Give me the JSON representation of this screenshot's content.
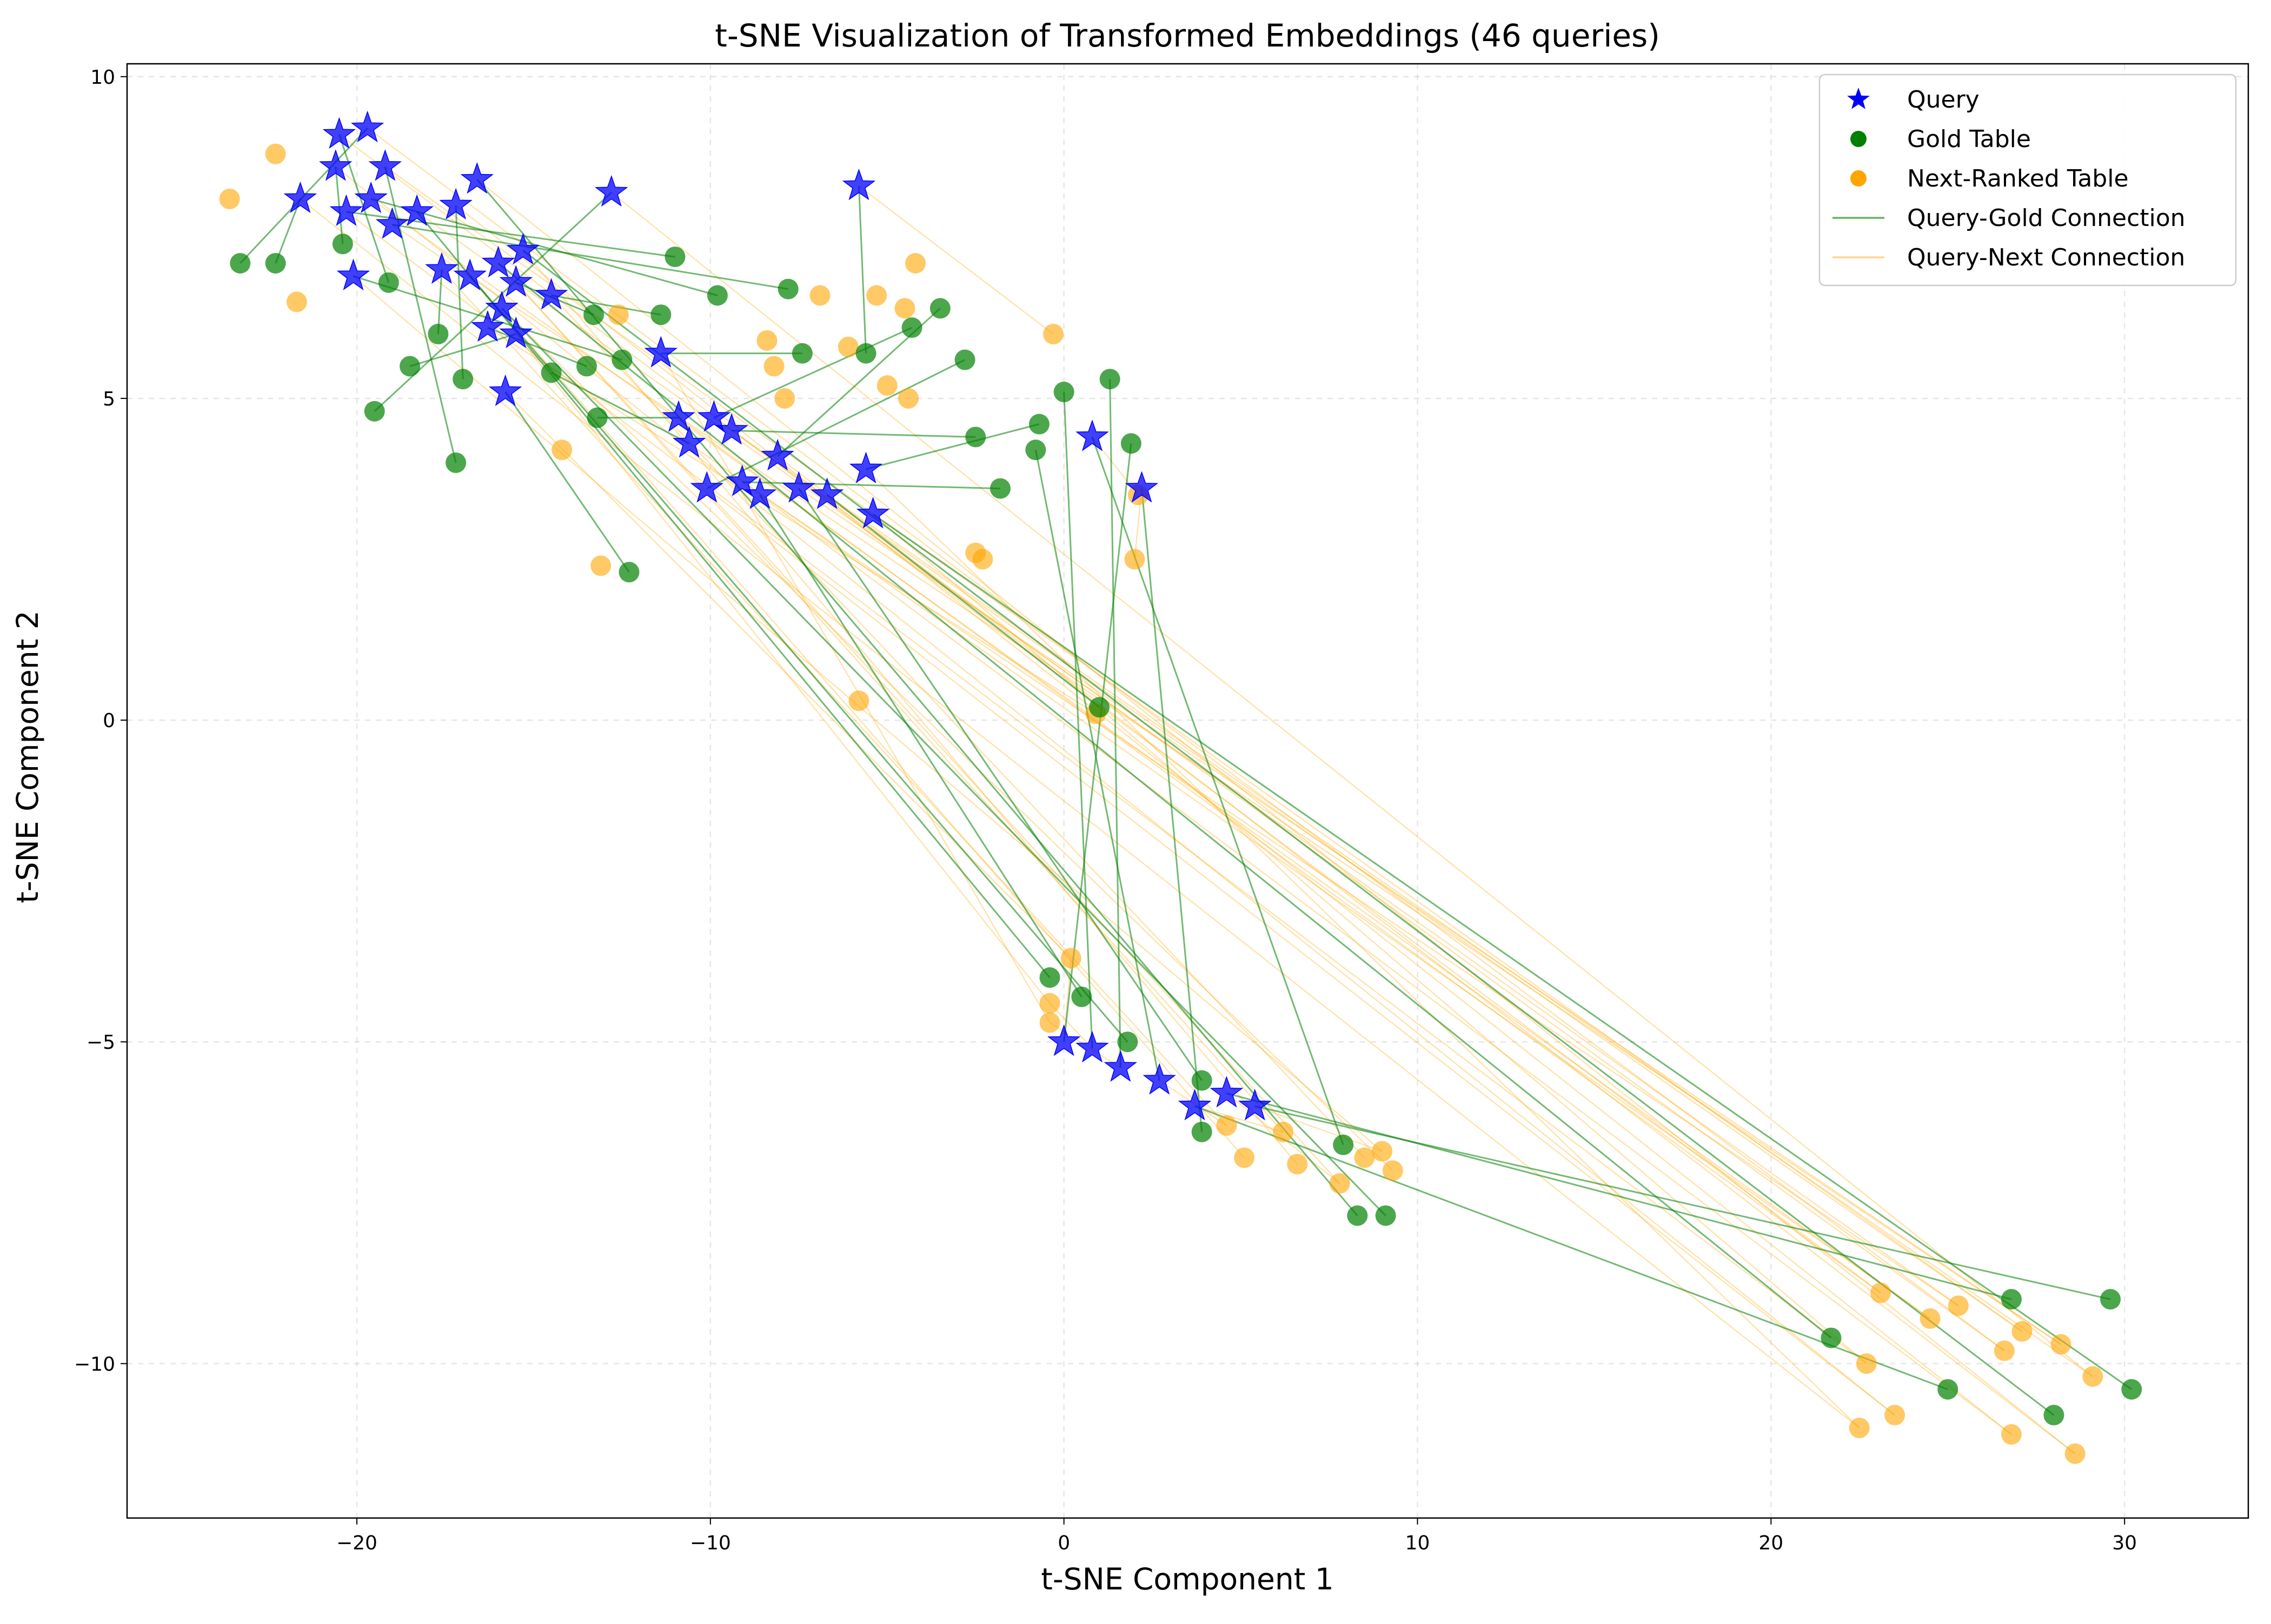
{
  "chart_data": {
    "type": "scatter",
    "title": "t-SNE Visualization of Transformed Embeddings (46 queries)",
    "xlabel": "t-SNE Component 1",
    "ylabel": "t-SNE Component 2",
    "xlim": [
      -26.5,
      33.5
    ],
    "ylim": [
      -12.4,
      10.2
    ],
    "x_ticks": [
      -20,
      -10,
      0,
      10,
      20,
      30
    ],
    "y_ticks": [
      -10,
      -5,
      0,
      5,
      10
    ],
    "x_tick_labels": [
      "−20",
      "−10",
      "0",
      "10",
      "20",
      "30"
    ],
    "y_tick_labels": [
      "−10",
      "−5",
      "0",
      "5",
      "10"
    ],
    "grid": true,
    "legend_position": "top-right",
    "legend": [
      {
        "label": "Query",
        "kind": "star",
        "color": "#0000ff"
      },
      {
        "label": "Gold Table",
        "kind": "circle",
        "color": "#008000"
      },
      {
        "label": "Next-Ranked Table",
        "kind": "circle",
        "color": "#ffa500"
      },
      {
        "label": "Query-Gold Connection",
        "kind": "line",
        "color": "#008000"
      },
      {
        "label": "Query-Next Connection",
        "kind": "line",
        "color": "#ffa500"
      }
    ],
    "colors": {
      "query": "#0000ff",
      "gold": "#008000",
      "next": "#ffa500"
    },
    "series": [
      {
        "name": "Query",
        "points": [
          [
            -20.5,
            9.1
          ],
          [
            -19.7,
            9.2
          ],
          [
            -20.6,
            8.6
          ],
          [
            -19.2,
            8.6
          ],
          [
            -21.6,
            8.1
          ],
          [
            -20.3,
            7.9
          ],
          [
            -19.6,
            8.1
          ],
          [
            -19.0,
            7.7
          ],
          [
            -18.3,
            7.9
          ],
          [
            -17.2,
            8.0
          ],
          [
            -16.6,
            8.4
          ],
          [
            -12.8,
            8.2
          ],
          [
            -5.8,
            8.3
          ],
          [
            -17.6,
            7.0
          ],
          [
            -16.8,
            6.9
          ],
          [
            -16.0,
            7.1
          ],
          [
            -15.3,
            7.3
          ],
          [
            -15.5,
            6.8
          ],
          [
            -14.5,
            6.6
          ],
          [
            -20.1,
            6.9
          ],
          [
            -15.9,
            6.4
          ],
          [
            -16.3,
            6.1
          ],
          [
            -15.5,
            6.0
          ],
          [
            -11.4,
            5.7
          ],
          [
            -15.8,
            5.1
          ],
          [
            -10.9,
            4.7
          ],
          [
            -10.6,
            4.3
          ],
          [
            -9.9,
            4.7
          ],
          [
            -9.4,
            4.5
          ],
          [
            -8.1,
            4.1
          ],
          [
            -10.1,
            3.6
          ],
          [
            -9.1,
            3.7
          ],
          [
            -8.6,
            3.5
          ],
          [
            -7.5,
            3.6
          ],
          [
            -6.7,
            3.5
          ],
          [
            -5.6,
            3.9
          ],
          [
            -5.4,
            3.2
          ],
          [
            0.8,
            4.4
          ],
          [
            2.2,
            3.6
          ],
          [
            0.0,
            -5.0
          ],
          [
            0.8,
            -5.1
          ],
          [
            1.6,
            -5.4
          ],
          [
            2.7,
            -5.6
          ],
          [
            3.7,
            -6.0
          ],
          [
            4.6,
            -5.8
          ],
          [
            5.4,
            -6.0
          ]
        ]
      },
      {
        "name": "Gold Table",
        "points": [
          [
            -23.3,
            7.1
          ],
          [
            -22.3,
            7.1
          ],
          [
            -20.4,
            7.4
          ],
          [
            -19.1,
            6.8
          ],
          [
            -11.0,
            7.2
          ],
          [
            -9.8,
            6.6
          ],
          [
            -7.8,
            6.7
          ],
          [
            -13.3,
            6.3
          ],
          [
            -11.4,
            6.3
          ],
          [
            -17.7,
            6.0
          ],
          [
            -3.5,
            6.4
          ],
          [
            -4.3,
            6.1
          ],
          [
            -7.4,
            5.7
          ],
          [
            -5.6,
            5.7
          ],
          [
            -12.5,
            5.6
          ],
          [
            -13.5,
            5.5
          ],
          [
            -18.5,
            5.5
          ],
          [
            -17.0,
            5.3
          ],
          [
            -14.5,
            5.4
          ],
          [
            -2.8,
            5.6
          ],
          [
            -19.5,
            4.8
          ],
          [
            -17.2,
            4.0
          ],
          [
            -13.2,
            4.7
          ],
          [
            -2.5,
            4.4
          ],
          [
            -0.7,
            4.6
          ],
          [
            1.9,
            4.3
          ],
          [
            -12.3,
            2.3
          ],
          [
            -1.8,
            3.6
          ],
          [
            1.0,
            0.2
          ],
          [
            -0.4,
            -4.0
          ],
          [
            0.5,
            -4.3
          ],
          [
            1.8,
            -5.0
          ],
          [
            3.9,
            -5.6
          ],
          [
            3.9,
            -6.4
          ],
          [
            7.9,
            -6.6
          ],
          [
            8.3,
            -7.7
          ],
          [
            9.1,
            -7.7
          ],
          [
            21.7,
            -9.6
          ],
          [
            28.0,
            -10.8
          ],
          [
            30.2,
            -10.4
          ],
          [
            0.0,
            5.1
          ],
          [
            1.3,
            5.3
          ],
          [
            -0.8,
            4.2
          ],
          [
            25.0,
            -10.4
          ],
          [
            26.8,
            -9.0
          ],
          [
            29.6,
            -9.0
          ]
        ]
      },
      {
        "name": "Next-Ranked Table",
        "points": [
          [
            -23.6,
            8.1
          ],
          [
            -22.3,
            8.8
          ],
          [
            -21.7,
            6.5
          ],
          [
            -12.6,
            6.3
          ],
          [
            -8.4,
            5.9
          ],
          [
            -8.2,
            5.5
          ],
          [
            -7.9,
            5.0
          ],
          [
            -6.9,
            6.6
          ],
          [
            -5.3,
            6.6
          ],
          [
            -4.5,
            6.4
          ],
          [
            -4.2,
            7.1
          ],
          [
            -6.1,
            5.8
          ],
          [
            -5.0,
            5.2
          ],
          [
            -4.4,
            5.0
          ],
          [
            -0.3,
            6.0
          ],
          [
            -14.2,
            4.2
          ],
          [
            -13.1,
            2.4
          ],
          [
            -2.5,
            2.6
          ],
          [
            -2.3,
            2.5
          ],
          [
            2.0,
            2.5
          ],
          [
            2.1,
            3.5
          ],
          [
            -5.8,
            0.3
          ],
          [
            0.9,
            0.1
          ],
          [
            0.2,
            -3.7
          ],
          [
            -0.4,
            -4.4
          ],
          [
            -0.4,
            -4.7
          ],
          [
            4.6,
            -6.3
          ],
          [
            5.1,
            -6.8
          ],
          [
            6.2,
            -6.4
          ],
          [
            6.6,
            -6.9
          ],
          [
            7.8,
            -7.2
          ],
          [
            8.5,
            -6.8
          ],
          [
            9.0,
            -6.7
          ],
          [
            9.3,
            -7.0
          ],
          [
            22.5,
            -11.0
          ],
          [
            22.7,
            -10.0
          ],
          [
            23.1,
            -8.9
          ],
          [
            23.5,
            -10.8
          ],
          [
            24.5,
            -9.3
          ],
          [
            25.3,
            -9.1
          ],
          [
            26.6,
            -9.8
          ],
          [
            26.8,
            -11.1
          ],
          [
            27.1,
            -9.5
          ],
          [
            28.2,
            -9.7
          ],
          [
            28.6,
            -11.4
          ],
          [
            29.1,
            -10.2
          ]
        ]
      }
    ],
    "query_gold_pairs": [
      [
        0,
        3
      ],
      [
        1,
        0
      ],
      [
        2,
        2
      ],
      [
        3,
        21
      ],
      [
        4,
        1
      ],
      [
        5,
        4
      ],
      [
        6,
        5
      ],
      [
        7,
        6
      ],
      [
        8,
        29
      ],
      [
        9,
        17
      ],
      [
        10,
        35
      ],
      [
        11,
        20
      ],
      [
        12,
        13
      ],
      [
        13,
        9
      ],
      [
        14,
        31
      ],
      [
        15,
        37
      ],
      [
        16,
        38
      ],
      [
        17,
        7
      ],
      [
        18,
        8
      ],
      [
        19,
        14
      ],
      [
        20,
        36
      ],
      [
        21,
        15
      ],
      [
        22,
        16
      ],
      [
        23,
        12
      ],
      [
        24,
        26
      ],
      [
        25,
        22
      ],
      [
        26,
        18
      ],
      [
        27,
        11
      ],
      [
        28,
        23
      ],
      [
        29,
        10
      ],
      [
        30,
        19
      ],
      [
        31,
        27
      ],
      [
        32,
        30
      ],
      [
        33,
        32
      ],
      [
        34,
        28
      ],
      [
        35,
        24
      ],
      [
        36,
        39
      ],
      [
        37,
        34
      ],
      [
        38,
        33
      ],
      [
        39,
        25
      ],
      [
        40,
        40
      ],
      [
        41,
        41
      ],
      [
        42,
        42
      ],
      [
        43,
        43
      ],
      [
        44,
        44
      ],
      [
        45,
        45
      ]
    ],
    "query_next_pairs": [
      [
        0,
        36
      ],
      [
        1,
        40
      ],
      [
        2,
        37
      ],
      [
        3,
        42
      ],
      [
        4,
        34
      ],
      [
        5,
        35
      ],
      [
        6,
        38
      ],
      [
        7,
        43
      ],
      [
        8,
        39
      ],
      [
        9,
        41
      ],
      [
        10,
        44
      ],
      [
        11,
        45
      ],
      [
        12,
        14
      ],
      [
        13,
        26
      ],
      [
        14,
        27
      ],
      [
        15,
        28
      ],
      [
        16,
        29
      ],
      [
        17,
        30
      ],
      [
        18,
        31
      ],
      [
        19,
        32
      ],
      [
        20,
        33
      ],
      [
        21,
        22
      ],
      [
        22,
        24
      ],
      [
        23,
        25
      ],
      [
        24,
        23
      ],
      [
        25,
        36
      ],
      [
        26,
        38
      ],
      [
        27,
        40
      ],
      [
        28,
        42
      ],
      [
        29,
        44
      ],
      [
        30,
        37
      ],
      [
        31,
        39
      ],
      [
        32,
        41
      ],
      [
        33,
        43
      ],
      [
        34,
        45
      ],
      [
        35,
        34
      ],
      [
        36,
        35
      ],
      [
        37,
        20
      ],
      [
        38,
        19
      ],
      [
        39,
        23
      ],
      [
        40,
        24
      ],
      [
        41,
        25
      ],
      [
        42,
        26
      ],
      [
        43,
        28
      ],
      [
        44,
        30
      ],
      [
        45,
        32
      ]
    ]
  }
}
